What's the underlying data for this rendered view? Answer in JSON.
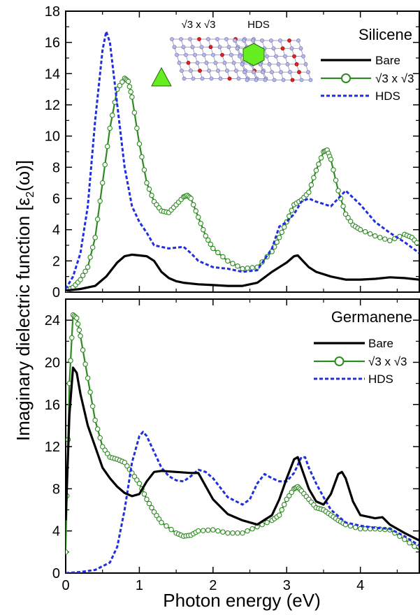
{
  "figure": {
    "xlabel": "Photon energy (eV)",
    "ylabel_main": "Imaginary dielectric function [",
    "ylabel_eps": "ε",
    "ylabel_sub": "2",
    "ylabel_tail": "(ω)]"
  },
  "colors": {
    "bare": "#000000",
    "sqrt3": "#2e8b21",
    "sqrt3_marker_fill": "#ffffff",
    "hds": "#1f2fe0",
    "hexagon_fill": "#66ee22",
    "atom_blue": "#b8b8e8",
    "atom_red": "#dd2222"
  },
  "chart_data": [
    {
      "type": "line",
      "title": "Silicene",
      "xlim": [
        0,
        4.8
      ],
      "ylim": [
        0,
        18
      ],
      "xticks": [
        "0",
        "1",
        "2",
        "3",
        "4"
      ],
      "yticks": [
        "0",
        "2",
        "4",
        "6",
        "8",
        "10",
        "12",
        "14",
        "16",
        "18"
      ],
      "grid": false,
      "legend_position": "top-right",
      "inset_labels": [
        "√3 x √3",
        "HDS"
      ],
      "series": [
        {
          "name": "Bare",
          "style": "solid",
          "x": [
            0,
            0.2,
            0.4,
            0.55,
            0.7,
            0.8,
            0.9,
            1.0,
            1.1,
            1.2,
            1.3,
            1.4,
            1.5,
            1.6,
            1.8,
            2.0,
            2.2,
            2.4,
            2.6,
            2.8,
            2.9,
            3.0,
            3.1,
            3.15,
            3.2,
            3.3,
            3.4,
            3.6,
            3.8,
            4.0,
            4.2,
            4.4,
            4.6,
            4.8
          ],
          "y": [
            0.1,
            0.2,
            0.4,
            1.0,
            1.9,
            2.3,
            2.4,
            2.35,
            2.3,
            2.0,
            1.3,
            0.9,
            0.7,
            0.6,
            0.5,
            0.45,
            0.4,
            0.4,
            0.6,
            1.3,
            1.6,
            1.9,
            2.3,
            2.35,
            2.1,
            1.6,
            1.3,
            1.0,
            0.8,
            0.8,
            0.85,
            0.95,
            0.9,
            0.8
          ]
        },
        {
          "name": "√3 x √3",
          "style": "solid-circles",
          "x": [
            0,
            0.1,
            0.2,
            0.3,
            0.4,
            0.5,
            0.6,
            0.7,
            0.8,
            0.85,
            0.9,
            1.0,
            1.1,
            1.2,
            1.3,
            1.4,
            1.5,
            1.6,
            1.65,
            1.7,
            1.8,
            1.9,
            2.0,
            2.2,
            2.4,
            2.6,
            2.8,
            2.9,
            3.0,
            3.1,
            3.2,
            3.3,
            3.4,
            3.5,
            3.55,
            3.6,
            3.7,
            3.8,
            3.9,
            4.0,
            4.2,
            4.4,
            4.6,
            4.7,
            4.8
          ],
          "y": [
            0.1,
            0.3,
            0.8,
            1.6,
            3.5,
            7.0,
            10.5,
            13.0,
            13.7,
            13.5,
            12.5,
            9.5,
            7.0,
            5.8,
            5.2,
            5.1,
            5.6,
            6.1,
            6.2,
            6.0,
            4.8,
            3.6,
            2.8,
            2.0,
            1.5,
            1.6,
            2.6,
            3.5,
            4.5,
            5.6,
            5.9,
            6.4,
            7.8,
            9.0,
            9.1,
            8.5,
            6.5,
            5.0,
            4.3,
            4.0,
            3.6,
            3.3,
            3.7,
            3.5,
            3.0
          ]
        },
        {
          "name": "HDS",
          "style": "dashed",
          "x": [
            0,
            0.1,
            0.2,
            0.3,
            0.4,
            0.5,
            0.55,
            0.6,
            0.7,
            0.8,
            0.9,
            1.0,
            1.1,
            1.2,
            1.4,
            1.6,
            1.7,
            1.8,
            1.9,
            2.0,
            2.2,
            2.4,
            2.6,
            2.8,
            2.9,
            3.0,
            3.1,
            3.2,
            3.3,
            3.4,
            3.6,
            3.7,
            3.8,
            4.0,
            4.2,
            4.4,
            4.6,
            4.8
          ],
          "y": [
            0.2,
            1.0,
            2.5,
            5.5,
            11.0,
            15.5,
            16.7,
            16.0,
            12.0,
            8.0,
            5.5,
            4.5,
            3.8,
            3.0,
            2.8,
            2.9,
            2.5,
            2.0,
            1.8,
            1.6,
            1.5,
            1.3,
            1.4,
            2.8,
            4.2,
            4.5,
            5.0,
            5.8,
            6.0,
            5.8,
            5.5,
            6.0,
            6.5,
            5.6,
            4.5,
            3.8,
            3.2,
            2.5
          ]
        }
      ]
    },
    {
      "type": "line",
      "title": "Germanene",
      "xlim": [
        0,
        4.8
      ],
      "ylim": [
        0,
        26
      ],
      "xticks": [
        "0",
        "1",
        "2",
        "3",
        "4"
      ],
      "yticks": [
        "0",
        "4",
        "8",
        "12",
        "16",
        "20",
        "24"
      ],
      "grid": false,
      "legend_position": "top-right",
      "series": [
        {
          "name": "Bare",
          "style": "solid",
          "x": [
            0,
            0.05,
            0.1,
            0.15,
            0.2,
            0.3,
            0.4,
            0.5,
            0.6,
            0.7,
            0.8,
            0.9,
            1.0,
            1.1,
            1.2,
            1.3,
            1.5,
            1.7,
            1.8,
            2.0,
            2.2,
            2.4,
            2.6,
            2.8,
            2.9,
            3.0,
            3.1,
            3.15,
            3.2,
            3.3,
            3.4,
            3.5,
            3.6,
            3.7,
            3.75,
            3.8,
            3.9,
            4.0,
            4.2,
            4.3,
            4.4,
            4.6,
            4.8
          ],
          "y": [
            5.0,
            15.0,
            19.5,
            19.0,
            17.0,
            14.0,
            12.0,
            10.0,
            9.0,
            8.2,
            7.6,
            7.3,
            7.5,
            8.7,
            9.6,
            9.7,
            9.6,
            9.5,
            9.5,
            7.0,
            5.6,
            5.0,
            4.6,
            5.5,
            7.0,
            9.0,
            10.8,
            11.0,
            10.0,
            8.0,
            6.8,
            6.5,
            7.5,
            9.4,
            9.6,
            9.0,
            6.8,
            5.5,
            5.2,
            5.3,
            4.6,
            3.8,
            3.1
          ]
        },
        {
          "name": "√3 x √3",
          "style": "solid-circles",
          "x": [
            0,
            0.05,
            0.1,
            0.15,
            0.2,
            0.3,
            0.4,
            0.5,
            0.6,
            0.7,
            0.8,
            0.9,
            1.0,
            1.1,
            1.2,
            1.3,
            1.5,
            1.6,
            1.7,
            1.8,
            2.0,
            2.2,
            2.4,
            2.6,
            2.8,
            2.9,
            3.0,
            3.1,
            3.15,
            3.2,
            3.3,
            3.4,
            3.5,
            3.6,
            3.7,
            3.8,
            4.0,
            4.2,
            4.4,
            4.6,
            4.8
          ],
          "y": [
            2.0,
            18.0,
            24.5,
            24.2,
            22.5,
            18.5,
            14.5,
            12.0,
            11.0,
            10.8,
            10.5,
            9.5,
            8.5,
            7.0,
            5.8,
            4.8,
            3.8,
            3.5,
            3.6,
            4.0,
            4.1,
            3.8,
            3.8,
            4.4,
            5.0,
            5.5,
            7.0,
            8.0,
            8.2,
            7.8,
            7.0,
            6.2,
            6.0,
            5.5,
            5.0,
            4.6,
            4.2,
            4.2,
            4.1,
            3.2,
            2.2
          ]
        },
        {
          "name": "HDS",
          "style": "dashed",
          "x": [
            0,
            0.2,
            0.4,
            0.6,
            0.7,
            0.8,
            0.9,
            1.0,
            1.05,
            1.1,
            1.2,
            1.3,
            1.4,
            1.5,
            1.6,
            1.7,
            1.8,
            1.9,
            2.0,
            2.2,
            2.4,
            2.5,
            2.6,
            2.7,
            2.8,
            2.9,
            3.0,
            3.1,
            3.2,
            3.25,
            3.3,
            3.4,
            3.5,
            3.6,
            3.8,
            4.0,
            4.2,
            4.4,
            4.6,
            4.8
          ],
          "y": [
            0,
            0.1,
            0.3,
            1.0,
            2.5,
            6.0,
            10.5,
            13.0,
            13.4,
            13.0,
            11.5,
            10.0,
            9.2,
            8.8,
            8.7,
            9.2,
            9.8,
            9.6,
            9.0,
            7.2,
            6.5,
            7.0,
            8.5,
            9.4,
            9.0,
            8.7,
            8.7,
            9.5,
            11.0,
            11.0,
            10.0,
            8.5,
            7.2,
            6.0,
            4.8,
            4.5,
            4.3,
            4.2,
            3.5,
            2.6
          ]
        }
      ]
    }
  ]
}
